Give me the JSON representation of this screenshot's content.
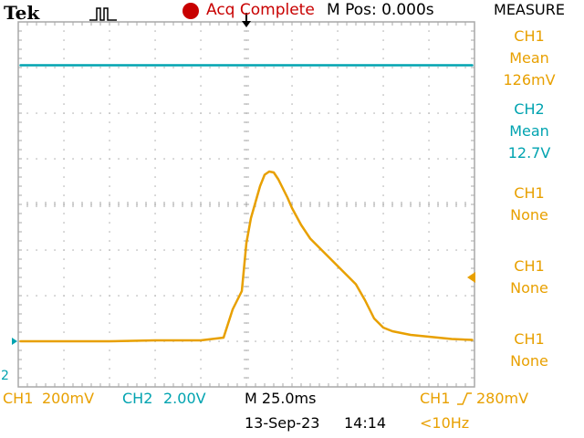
{
  "header": {
    "brand": "Tek",
    "trigger_mode_icon": "pulse-icon",
    "status_dot_color": "#c80000",
    "status": "Acq Complete",
    "position": "M Pos: 0.000s"
  },
  "measure_menu": {
    "title": "MEASURE",
    "items": [
      {
        "source": "CH1",
        "type": "Mean",
        "value": "126mV",
        "color": "#e8a000"
      },
      {
        "source": "CH2",
        "type": "Mean",
        "value": "12.7V",
        "color": "#00a3b0"
      },
      {
        "source": "CH1",
        "type": "None",
        "value": "",
        "color": "#e8a000"
      },
      {
        "source": "CH1",
        "type": "None",
        "value": "",
        "color": "#e8a000"
      },
      {
        "source": "CH1",
        "type": "None",
        "value": "",
        "color": "#e8a000"
      }
    ]
  },
  "footer": {
    "ch1_label": "CH1",
    "ch1_scale": "200mV",
    "ch2_label": "CH2",
    "ch2_scale": "2.00V",
    "timebase": "M 25.0ms",
    "trigger_source": "CH1",
    "trigger_level": "280mV",
    "date": "13-Sep-23",
    "time": "14:14",
    "trigger_freq": "<10Hz"
  },
  "markers": {
    "ch2_ground_label": "2"
  },
  "colors": {
    "ch1": "#e8a000",
    "ch2": "#00a3b0",
    "grid": "#a8a8a8",
    "text": "#000000"
  },
  "chart_data": {
    "type": "line",
    "series": [
      {
        "name": "CH1",
        "volts_per_div": 0.2,
        "time_div": [
          -4.95,
          -4,
          -3,
          -2,
          -1,
          -0.5,
          -0.3,
          -0.1,
          0,
          0.1,
          0.2,
          0.3,
          0.4,
          0.5,
          0.6,
          0.7,
          0.8,
          0.9,
          1.0,
          1.2,
          1.4,
          1.6,
          1.8,
          2.0,
          2.2,
          2.4,
          2.6,
          2.8,
          3.0,
          3.2,
          3.4,
          3.6,
          3.8,
          4.0,
          4.5,
          4.95
        ],
        "voltage_div": [
          -3.0,
          -3.0,
          -3.0,
          -2.98,
          -2.98,
          -2.92,
          -2.3,
          -1.9,
          -0.85,
          -0.3,
          0.05,
          0.4,
          0.65,
          0.72,
          0.7,
          0.55,
          0.35,
          0.15,
          -0.08,
          -0.45,
          -0.75,
          -0.95,
          -1.15,
          -1.35,
          -1.55,
          -1.75,
          -2.1,
          -2.5,
          -2.7,
          -2.78,
          -2.82,
          -2.86,
          -2.88,
          -2.9,
          -2.95,
          -2.97
        ]
      },
      {
        "name": "CH2",
        "volts_per_div": 2.0,
        "time_div": [
          -4.95,
          4.95
        ],
        "voltage_div": [
          3.05,
          3.05
        ]
      }
    ],
    "x_divisions": 10,
    "y_divisions": 8,
    "grid": true
  }
}
